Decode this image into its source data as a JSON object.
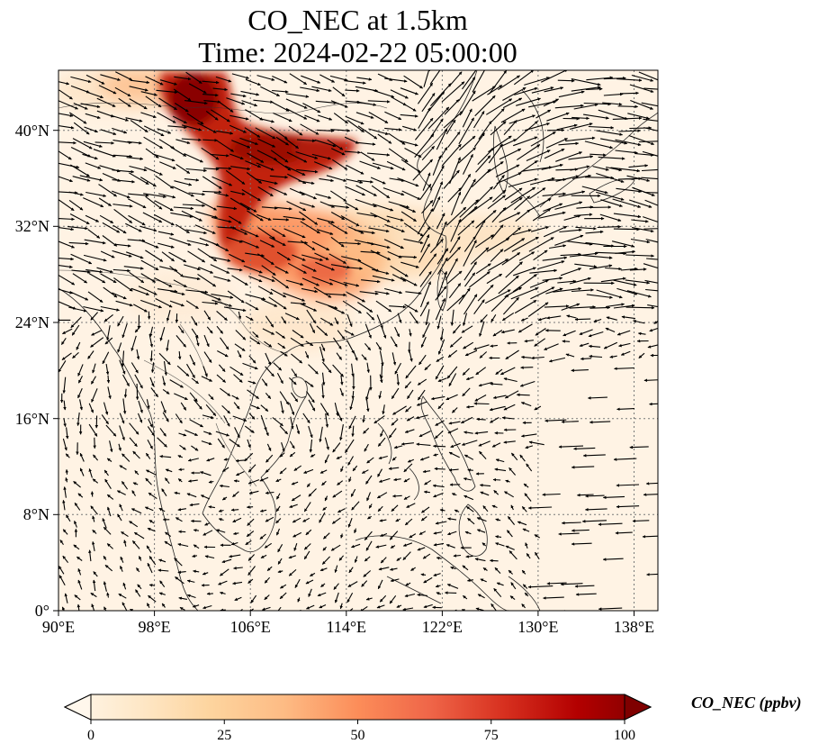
{
  "title": {
    "line1": "CO_NEC at 1.5km",
    "line2": "Time: 2024-02-22 05:00:00"
  },
  "map": {
    "lon_range": [
      90,
      140
    ],
    "lat_range": [
      0,
      45
    ],
    "lon_ticks": [
      "90°E",
      "98°E",
      "106°E",
      "114°E",
      "122°E",
      "130°E",
      "138°E"
    ],
    "lat_ticks": [
      "0°",
      "8°N",
      "16°N",
      "24°N",
      "32°N",
      "40°N"
    ],
    "gridlines": true,
    "features": [
      "coastlines",
      "country borders",
      "wind vectors",
      "CO concentration field"
    ]
  },
  "colorbar": {
    "label": "CO_NEC (ppbv)",
    "ticks": [
      "0",
      "25",
      "50",
      "75",
      "100"
    ],
    "range": [
      0,
      100
    ],
    "extend": "both",
    "colormap": "OrRd",
    "colors": [
      "#fff7ec",
      "#fee8c8",
      "#fdd49e",
      "#fdbb84",
      "#fc8d59",
      "#ef6548",
      "#d7301f",
      "#b30000",
      "#7f0000"
    ]
  }
}
